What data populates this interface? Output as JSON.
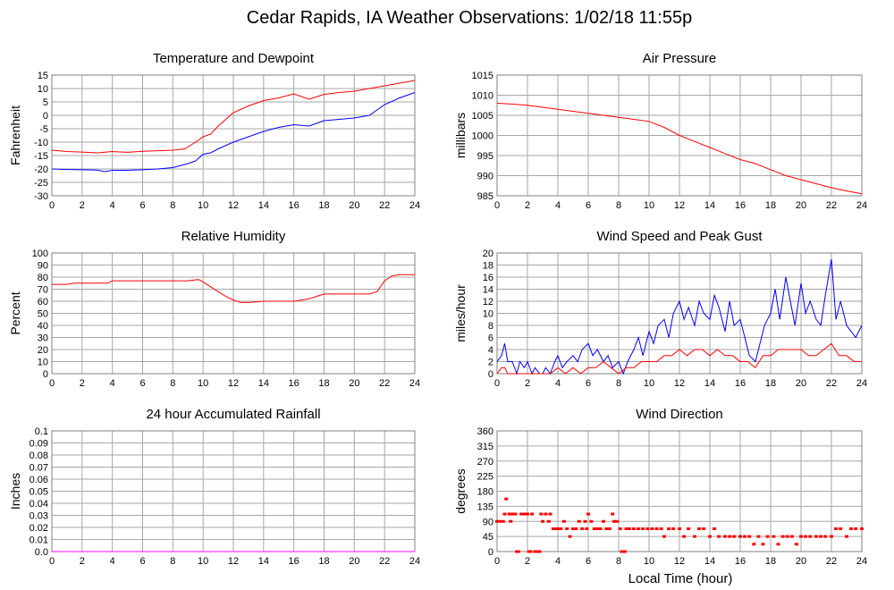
{
  "page": {
    "title": "Cedar Rapids, IA Weather Observations: 1/02/18 11:55p",
    "xlabel": "Local Time (hour)"
  },
  "colors": {
    "red": "#ff0000",
    "blue": "#0000ff",
    "grid": "#a6a6a6"
  },
  "chart_data": [
    {
      "id": "temp",
      "type": "line",
      "title": "Temperature and Dewpoint",
      "ylabel": "Fahrenheit",
      "xlim": [
        0,
        24
      ],
      "ylim": [
        -30,
        15
      ],
      "xticks": [
        0,
        2,
        4,
        6,
        8,
        10,
        12,
        14,
        16,
        18,
        20,
        22,
        24
      ],
      "yticks": [
        -30,
        -25,
        -20,
        -15,
        -10,
        -5,
        0,
        5,
        10,
        15
      ],
      "grid": true,
      "series": [
        {
          "color": "#ff0000",
          "x": [
            0,
            1,
            2,
            3,
            4,
            5,
            6,
            7,
            8,
            8.8,
            9.5,
            10,
            10.5,
            11,
            12,
            13,
            14,
            15,
            16,
            17,
            18,
            19,
            20,
            21,
            22,
            23,
            24
          ],
          "y": [
            -13,
            -13.5,
            -13.7,
            -14,
            -13.5,
            -13.8,
            -13.4,
            -13.2,
            -13,
            -12.5,
            -10,
            -8,
            -7,
            -4,
            1,
            3.5,
            5.5,
            6.5,
            8,
            6,
            7.8,
            8.5,
            9,
            10,
            11,
            12,
            13
          ]
        },
        {
          "color": "#0000ff",
          "x": [
            0,
            1,
            2,
            3,
            3.5,
            4,
            5,
            6,
            7,
            8,
            9,
            9.5,
            10,
            10.5,
            11,
            12,
            13,
            14,
            15,
            16,
            17,
            17.5,
            18,
            19,
            20,
            21,
            22,
            23,
            24
          ],
          "y": [
            -20,
            -20.2,
            -20.3,
            -20.4,
            -21,
            -20.5,
            -20.5,
            -20.3,
            -20,
            -19.5,
            -18,
            -17,
            -14.5,
            -14,
            -12.5,
            -10,
            -8,
            -6,
            -4.5,
            -3.5,
            -4,
            -3,
            -2,
            -1.5,
            -1,
            0,
            4,
            6.5,
            8.5
          ]
        }
      ]
    },
    {
      "id": "pres",
      "type": "line",
      "title": "Air Pressure",
      "ylabel": "millibars",
      "xlim": [
        0,
        24
      ],
      "ylim": [
        985,
        1015
      ],
      "xticks": [
        0,
        2,
        4,
        6,
        8,
        10,
        12,
        14,
        16,
        18,
        20,
        22,
        24
      ],
      "yticks": [
        985,
        990,
        995,
        1000,
        1005,
        1010,
        1015
      ],
      "grid": true,
      "series": [
        {
          "color": "#ff0000",
          "x": [
            0,
            1,
            2,
            3,
            4,
            5,
            6,
            7,
            8,
            9,
            10,
            11,
            12,
            13,
            14,
            15,
            16,
            17,
            18,
            19,
            20,
            21,
            22,
            23,
            24
          ],
          "y": [
            1008,
            1007.8,
            1007.5,
            1007,
            1006.5,
            1006,
            1005.5,
            1005,
            1004.5,
            1004,
            1003.5,
            1002,
            1000,
            998.5,
            997,
            995.5,
            994,
            993,
            991.5,
            990,
            989,
            988,
            987,
            986.2,
            985.5
          ]
        }
      ]
    },
    {
      "id": "rh",
      "type": "line",
      "title": "Relative Humidity",
      "ylabel": "Percent",
      "xlim": [
        0,
        24
      ],
      "ylim": [
        0,
        100
      ],
      "xticks": [
        0,
        2,
        4,
        6,
        8,
        10,
        12,
        14,
        16,
        18,
        20,
        22,
        24
      ],
      "yticks": [
        0,
        10,
        20,
        30,
        40,
        50,
        60,
        70,
        80,
        90,
        100
      ],
      "grid": true,
      "series": [
        {
          "color": "#ff0000",
          "x": [
            0,
            1,
            1.5,
            2,
            3,
            3.7,
            4,
            5,
            6,
            7,
            8,
            9,
            9.7,
            10,
            10.5,
            11,
            11.5,
            12,
            12.5,
            13,
            14,
            15,
            16,
            17,
            17.5,
            18,
            19,
            20,
            21,
            21.5,
            22,
            22.5,
            23,
            24
          ],
          "y": [
            74,
            74,
            75,
            75,
            75,
            75,
            77,
            77,
            77,
            77,
            77,
            77,
            78,
            76,
            72,
            68,
            64,
            61,
            59,
            59,
            60,
            60,
            60,
            62,
            64,
            66,
            66,
            66,
            66,
            68,
            77,
            81,
            82,
            82
          ]
        }
      ]
    },
    {
      "id": "wind",
      "type": "line",
      "title": "Wind Speed and Peak Gust",
      "ylabel": "miles/hour",
      "xlim": [
        0,
        24
      ],
      "ylim": [
        0,
        20
      ],
      "xticks": [
        0,
        2,
        4,
        6,
        8,
        10,
        12,
        14,
        16,
        18,
        20,
        22,
        24
      ],
      "yticks": [
        0,
        2,
        4,
        6,
        8,
        10,
        12,
        14,
        16,
        18,
        20
      ],
      "grid": true,
      "series": [
        {
          "color": "#0000ff",
          "x": [
            0,
            0.3,
            0.5,
            0.7,
            1,
            1.3,
            1.5,
            1.8,
            2,
            2.3,
            2.5,
            2.8,
            3,
            3.2,
            3.5,
            3.8,
            4,
            4.3,
            4.6,
            5,
            5.3,
            5.6,
            6,
            6.3,
            6.6,
            7,
            7.3,
            7.6,
            8,
            8.3,
            8.6,
            9,
            9.3,
            9.6,
            10,
            10.3,
            10.6,
            11,
            11.3,
            11.6,
            12,
            12.3,
            12.6,
            13,
            13.3,
            13.6,
            14,
            14.3,
            14.6,
            15,
            15.3,
            15.6,
            16,
            16.3,
            16.6,
            17,
            17.3,
            17.6,
            18,
            18.3,
            18.6,
            19,
            19.3,
            19.6,
            20,
            20.3,
            20.6,
            21,
            21.3,
            21.6,
            22,
            22.3,
            22.6,
            23,
            23.3,
            23.6,
            24
          ],
          "y": [
            2,
            3,
            5,
            2,
            2,
            0,
            2,
            1,
            2,
            0,
            1,
            0,
            0,
            1,
            0,
            2,
            3,
            1,
            2,
            3,
            2,
            4,
            5,
            3,
            4,
            2,
            3,
            1,
            2,
            0,
            2,
            4,
            6,
            3,
            7,
            5,
            8,
            9,
            6,
            10,
            12,
            9,
            11,
            8,
            12,
            10,
            9,
            13,
            11,
            7,
            12,
            8,
            9,
            6,
            3,
            2,
            5,
            8,
            10,
            14,
            9,
            16,
            12,
            8,
            15,
            10,
            12,
            9,
            8,
            13,
            19,
            9,
            12,
            8,
            7,
            6,
            8
          ]
        },
        {
          "color": "#ff0000",
          "x": [
            0,
            0.3,
            0.5,
            0.7,
            1,
            1.5,
            2,
            2.5,
            3,
            3.5,
            4,
            4.5,
            5,
            5.5,
            6,
            6.5,
            7,
            7.5,
            8,
            8.5,
            9,
            9.5,
            10,
            10.5,
            11,
            11.5,
            12,
            12.5,
            13,
            13.5,
            14,
            14.5,
            15,
            15.5,
            16,
            16.5,
            17,
            17.5,
            18,
            18.5,
            19,
            19.5,
            20,
            20.5,
            21,
            21.5,
            22,
            22.5,
            23,
            23.5,
            24
          ],
          "y": [
            0,
            1,
            1,
            0,
            0,
            0,
            0,
            0,
            0,
            0,
            1,
            0,
            1,
            0,
            1,
            1,
            2,
            1,
            0,
            1,
            1,
            2,
            2,
            2,
            3,
            3,
            4,
            3,
            4,
            4,
            3,
            4,
            3,
            3,
            2,
            2,
            1,
            3,
            3,
            4,
            4,
            4,
            4,
            3,
            3,
            4,
            5,
            3,
            3,
            2,
            2
          ]
        }
      ]
    },
    {
      "id": "rain",
      "type": "line",
      "title": "24 hour Accumulated Rainfall",
      "ylabel": "Inches",
      "xlim": [
        0,
        24
      ],
      "ylim": [
        0,
        0.1
      ],
      "xticks": [
        0,
        2,
        4,
        6,
        8,
        10,
        12,
        14,
        16,
        18,
        20,
        22,
        24
      ],
      "yticks": [
        0,
        0.01,
        0.02,
        0.03,
        0.04,
        0.05,
        0.06,
        0.07,
        0.08,
        0.09,
        0.1
      ],
      "yticklabels": [
        "0.0",
        "0.01",
        "0.02",
        "0.03",
        "0.04",
        "0.05",
        "0.06",
        "0.07",
        "0.08",
        "0.09",
        "0.1"
      ],
      "grid": true,
      "series": [
        {
          "color": "#ff00ff",
          "x": [
            0,
            24
          ],
          "y": [
            0,
            0
          ]
        }
      ]
    },
    {
      "id": "dir",
      "type": "scatter",
      "title": "Wind Direction",
      "ylabel": "degrees",
      "xlim": [
        0,
        24
      ],
      "ylim": [
        0,
        360
      ],
      "xticks": [
        0,
        2,
        4,
        6,
        8,
        10,
        12,
        14,
        16,
        18,
        20,
        22,
        24
      ],
      "yticks": [
        0,
        45,
        90,
        135,
        180,
        225,
        270,
        315,
        360
      ],
      "grid": true,
      "series": [
        {
          "color": "#ff0000",
          "x": [
            0,
            0.2,
            0.4,
            0.5,
            0.6,
            0.8,
            0.9,
            1.0,
            1.2,
            1.3,
            1.4,
            1.6,
            1.8,
            2.0,
            2.1,
            2.2,
            2.3,
            2.5,
            2.6,
            2.8,
            2.9,
            3.0,
            3.2,
            3.4,
            3.5,
            3.7,
            3.8,
            4.0,
            4.2,
            4.4,
            4.6,
            4.8,
            5.0,
            5.2,
            5.4,
            5.6,
            5.8,
            5.9,
            6.0,
            6.2,
            6.4,
            6.6,
            6.8,
            7.0,
            7.2,
            7.4,
            7.6,
            7.7,
            7.9,
            8.1,
            8.2,
            8.4,
            8.5,
            8.7,
            9.0,
            9.3,
            9.6,
            9.9,
            10.2,
            10.5,
            10.8,
            11.0,
            11.3,
            11.6,
            12.0,
            12.3,
            12.6,
            13.0,
            13.3,
            13.6,
            14.0,
            14.3,
            14.6,
            15.0,
            15.3,
            15.6,
            16.0,
            16.3,
            16.6,
            16.9,
            17.2,
            17.5,
            17.8,
            18.2,
            18.5,
            18.8,
            19.1,
            19.4,
            19.7,
            20.0,
            20.3,
            20.6,
            21.0,
            21.3,
            21.6,
            22.0,
            22.3,
            22.6,
            23.0,
            23.3,
            23.6,
            24.0
          ],
          "y": [
            90,
            90,
            90,
            112,
            157,
            112,
            90,
            112,
            112,
            0,
            0,
            112,
            112,
            112,
            0,
            0,
            112,
            0,
            0,
            0,
            112,
            90,
            112,
            90,
            112,
            68,
            68,
            68,
            68,
            90,
            68,
            45,
            68,
            68,
            90,
            68,
            90,
            68,
            112,
            90,
            68,
            68,
            68,
            90,
            68,
            68,
            112,
            90,
            90,
            68,
            0,
            0,
            68,
            68,
            68,
            68,
            68,
            68,
            68,
            68,
            68,
            45,
            68,
            68,
            68,
            45,
            68,
            45,
            68,
            68,
            45,
            68,
            45,
            45,
            45,
            45,
            45,
            45,
            45,
            22,
            45,
            22,
            45,
            45,
            22,
            45,
            45,
            45,
            22,
            45,
            45,
            45,
            45,
            45,
            45,
            45,
            68,
            68,
            45,
            68,
            68,
            68
          ]
        }
      ]
    }
  ]
}
